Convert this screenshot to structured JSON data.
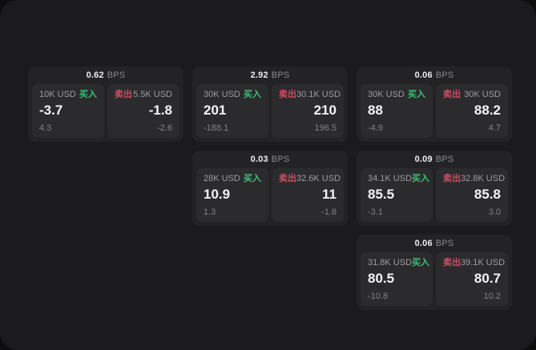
{
  "labels": {
    "bps_unit": "BPS",
    "buy": "买入",
    "sell": "卖出"
  },
  "colors": {
    "buy_green": "#3fc072",
    "sell_red": "#cc4f63",
    "window_bg": "#1b1b1d",
    "card_bg": "#232325",
    "panel_bg": "#2b2b2e"
  },
  "cards": [
    {
      "bps": "0.62",
      "buy": {
        "amount": "10K USD",
        "value": "-3.7",
        "sub": "4.3"
      },
      "sell": {
        "amount": "5.5K USD",
        "value": "-1.8",
        "sub": "-2.6"
      }
    },
    {
      "bps": "2.92",
      "buy": {
        "amount": "30K USD",
        "value": "201",
        "sub": "-188.1"
      },
      "sell": {
        "amount": "30.1K USD",
        "value": "210",
        "sub": "196.5"
      }
    },
    {
      "bps": "0.06",
      "buy": {
        "amount": "30K USD",
        "value": "88",
        "sub": "-4.9"
      },
      "sell": {
        "amount": "30K USD",
        "value": "88.2",
        "sub": "4.7"
      }
    },
    {
      "bps": "0.03",
      "buy": {
        "amount": "28K USD",
        "value": "10.9",
        "sub": "1.3"
      },
      "sell": {
        "amount": "32.6K USD",
        "value": "11",
        "sub": "-1.8"
      }
    },
    {
      "bps": "0.09",
      "buy": {
        "amount": "34.1K USD",
        "value": "85.5",
        "sub": "-3.1"
      },
      "sell": {
        "amount": "32.8K USD",
        "value": "85.8",
        "sub": "3.0"
      }
    },
    {
      "bps": "0.06",
      "buy": {
        "amount": "31.8K USD",
        "value": "80.5",
        "sub": "-10.8"
      },
      "sell": {
        "amount": "39.1K USD",
        "value": "80.7",
        "sub": "10.2"
      }
    }
  ]
}
